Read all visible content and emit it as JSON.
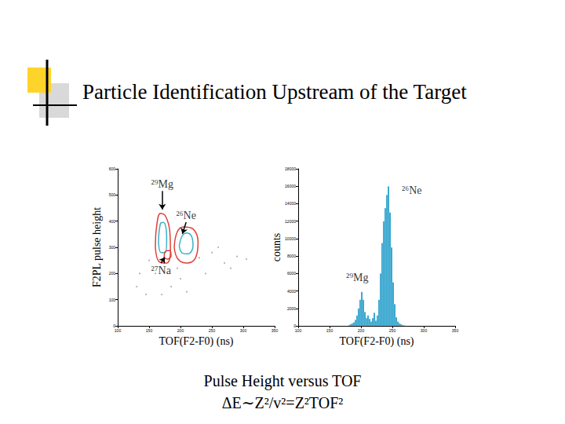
{
  "slide": {
    "title": "Particle Identification Upstream of the Target",
    "caption": [
      "Pulse Height versus TOF",
      "ΔE∼Z²/v²=Z²TOF²"
    ]
  },
  "chart_data": [
    {
      "type": "contour",
      "x_label": "TOF(F2-F0) (ns)",
      "y_label": "F2PL pulse height",
      "xlim": [
        100,
        350
      ],
      "xticks": [
        100,
        150,
        200,
        250,
        300,
        350
      ],
      "ylim": [
        0,
        600
      ],
      "yticks": [
        0,
        100,
        200,
        300,
        400,
        500,
        600
      ],
      "contours": [
        {
          "color": "#e0403a",
          "points": [
            [
              160,
              300
            ],
            [
              162,
              380
            ],
            [
              168,
              430
            ],
            [
              176,
              420
            ],
            [
              183,
              360
            ],
            [
              184,
              280
            ],
            [
              178,
              240
            ],
            [
              166,
              245
            ],
            [
              160,
              300
            ]
          ]
        },
        {
          "color": "#3ab0c8",
          "points": [
            [
              165,
              320
            ],
            [
              168,
              390
            ],
            [
              173,
              395
            ],
            [
              178,
              340
            ],
            [
              176,
              280
            ],
            [
              169,
              280
            ],
            [
              165,
              320
            ]
          ]
        },
        {
          "color": "#e0403a",
          "points": [
            [
              190,
              300
            ],
            [
              195,
              360
            ],
            [
              205,
              378
            ],
            [
              220,
              370
            ],
            [
              228,
              320
            ],
            [
              224,
              260
            ],
            [
              210,
              240
            ],
            [
              196,
              255
            ],
            [
              190,
              300
            ]
          ]
        },
        {
          "color": "#3ab0c8",
          "points": [
            [
              198,
              305
            ],
            [
              203,
              345
            ],
            [
              210,
              355
            ],
            [
              218,
              340
            ],
            [
              220,
              305
            ],
            [
              212,
              275
            ],
            [
              203,
              278
            ],
            [
              198,
              305
            ]
          ]
        },
        {
          "color": "#e0403a",
          "points": [
            [
              174,
              260
            ],
            [
              176,
              285
            ],
            [
              183,
              288
            ],
            [
              185,
              268
            ],
            [
              179,
              255
            ],
            [
              174,
              260
            ]
          ]
        }
      ],
      "scatter": {
        "color": "#9a9a9a",
        "points": [
          [
            130,
            150
          ],
          [
            145,
            120
          ],
          [
            160,
            200
          ],
          [
            150,
            250
          ],
          [
            185,
            150
          ],
          [
            200,
            180
          ],
          [
            230,
            260
          ],
          [
            250,
            280
          ],
          [
            270,
            240
          ],
          [
            290,
            265
          ],
          [
            305,
            255
          ],
          [
            240,
            200
          ],
          [
            170,
            120
          ],
          [
            210,
            130
          ],
          [
            260,
            300
          ],
          [
            280,
            220
          ],
          [
            195,
            220
          ],
          [
            135,
            200
          ]
        ]
      },
      "annotations": [
        {
          "text": "²⁹Mg",
          "x": 171,
          "y": 515,
          "arrow_x": 171,
          "arrow_y": 445
        },
        {
          "text": "²⁶Ne",
          "x": 209,
          "y": 396,
          "arrow_x": 203,
          "arrow_y": 352
        },
        {
          "text": "²⁷Na",
          "x": 169,
          "y": 240,
          "arrow_x": 175,
          "arrow_y": 262
        }
      ]
    },
    {
      "type": "histogram",
      "x_label": "TOF(F2-F0) (ns)",
      "y_label": "counts",
      "xlim": [
        100,
        350
      ],
      "xticks": [
        100,
        150,
        200,
        250,
        300,
        350
      ],
      "ylim": [
        0,
        18000
      ],
      "yticks": [
        0,
        2000,
        4000,
        6000,
        8000,
        10000,
        12000,
        14000,
        16000,
        18000
      ],
      "color": "#1a9ac9",
      "bins": [
        180,
        182.5,
        185,
        187.5,
        190,
        192.5,
        195,
        197.5,
        200,
        202.5,
        205,
        207.5,
        210,
        212.5,
        215,
        217.5,
        220,
        222.5,
        225,
        227.5,
        230,
        232.5,
        235,
        237.5,
        240,
        242.5,
        245,
        247.5,
        250,
        252.5,
        255,
        257.5,
        260,
        262.5,
        265,
        267.5,
        270
      ],
      "counts": [
        100,
        200,
        300,
        400,
        700,
        1200,
        2000,
        3000,
        3900,
        3000,
        1600,
        900,
        1200,
        800,
        500,
        900,
        1500,
        600,
        1200,
        3000,
        6000,
        9500,
        12000,
        13500,
        15000,
        16000,
        13000,
        9000,
        5000,
        2500,
        1000,
        500,
        300,
        200,
        100,
        50
      ],
      "annotations": [
        {
          "text": "²⁶Ne",
          "x": 281,
          "y": 15500
        },
        {
          "text": "²⁹Mg",
          "x": 194,
          "y": 5500
        }
      ]
    }
  ]
}
